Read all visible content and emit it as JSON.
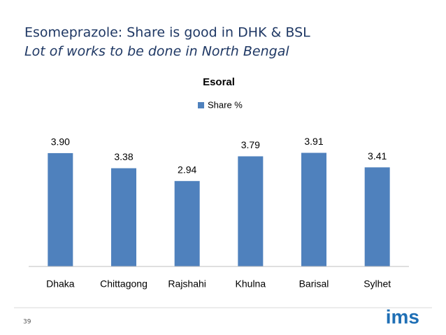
{
  "slide": {
    "title": "Esomeprazole: Share is good in DHK & BSL",
    "subtitle": "Lot of works to be done in North Bengal",
    "page_number": "39",
    "logo": "ims"
  },
  "chart_data": {
    "type": "bar",
    "title": "Esoral",
    "categories": [
      "Dhaka",
      "Chittagong",
      "Rajshahi",
      "Khulna",
      "Barisal",
      "Sylhet"
    ],
    "series": [
      {
        "name": "Share %",
        "color": "#4f81bd",
        "values": [
          3.9,
          3.38,
          2.94,
          3.79,
          3.91,
          3.41
        ],
        "value_labels": [
          "3.90",
          "3.38",
          "2.94",
          "3.79",
          "3.91",
          "3.41"
        ]
      }
    ],
    "ylim": [
      0,
      4.5
    ],
    "legend": "top"
  }
}
